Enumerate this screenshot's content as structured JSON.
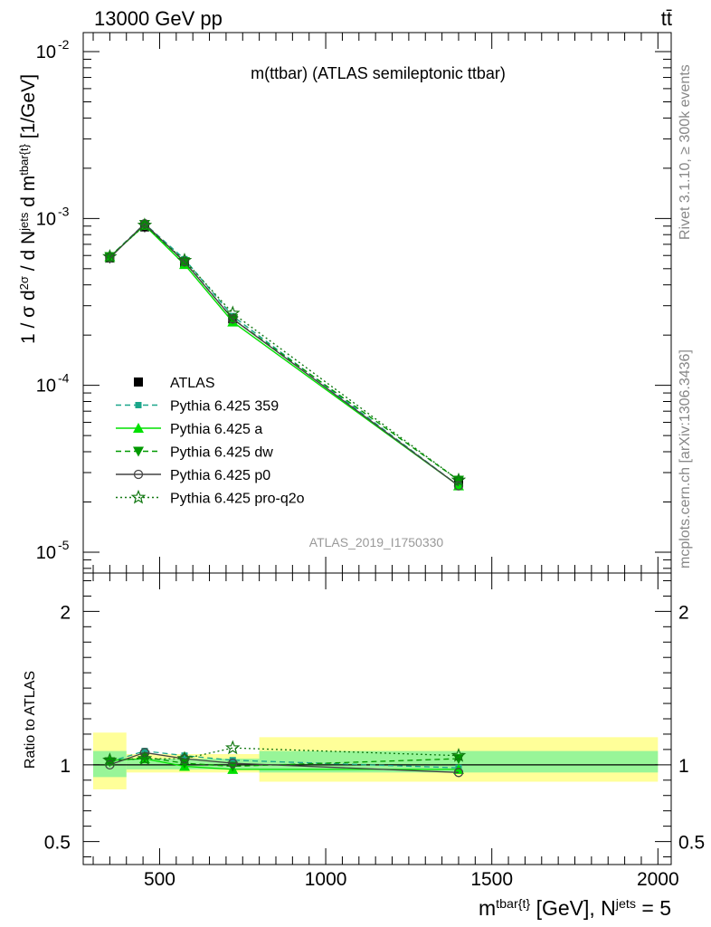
{
  "header": {
    "left": "13000 GeV pp",
    "right": "tt̄",
    "plot_title": "m(ttbar) (ATLAS semileptonic ttbar)",
    "analysis_id": "ATLAS_2019_I1750330",
    "side_rivet": "Rivet 3.1.10, ≥ 300k events",
    "side_mcplots": "mcplots.cern.ch [arXiv:1306.3436]"
  },
  "axes": {
    "main_ylabel": "1 / σ d²σ / d N^jets d m^tbar{t} [1/GeV]",
    "ratio_ylabel": "Ratio to ATLAS",
    "xlabel": "m^tbar{t} [GeV], N^jets = 5"
  },
  "chart_data": [
    {
      "type": "line",
      "panel": "main",
      "ylog": true,
      "xlim": [
        270,
        2040
      ],
      "ylim": [
        7.5e-06,
        0.013
      ],
      "x_ticks": [
        "500",
        "1000",
        "1500",
        "2000"
      ],
      "y_ticks": [
        "10^-5",
        "10^-4",
        "10^-3",
        "10^-2"
      ],
      "x": [
        350,
        455,
        575,
        720,
        1400
      ],
      "series": [
        {
          "name": "ATLAS",
          "color": "#000000",
          "values": [
            0.00058,
            0.00089,
            0.00054,
            0.00025,
            2.6e-05
          ]
        },
        {
          "name": "Pythia 6.425 359",
          "color": "#1aa68a",
          "dash": "dashed",
          "values": [
            0.00059,
            0.00093,
            0.00057,
            0.00026,
            2.5e-05
          ]
        },
        {
          "name": "Pythia 6.425 a",
          "color": "#00e000",
          "dash": "solid",
          "values": [
            0.00059,
            0.00091,
            0.00053,
            0.00024,
            2.5e-05
          ]
        },
        {
          "name": "Pythia 6.425 dw",
          "color": "#009900",
          "dash": "dashed",
          "values": [
            0.00059,
            0.00092,
            0.00055,
            0.00025,
            2.7e-05
          ]
        },
        {
          "name": "Pythia 6.425 p0",
          "color": "#444444",
          "dash": "solid",
          "values": [
            0.00058,
            0.00093,
            0.00055,
            0.00025,
            2.5e-05
          ]
        },
        {
          "name": "Pythia 6.425 pro-q2o",
          "color": "#117711",
          "dash": "dotted",
          "values": [
            0.00059,
            0.00091,
            0.00056,
            0.00027,
            2.7e-05
          ]
        }
      ]
    },
    {
      "type": "line",
      "panel": "ratio",
      "xlim": [
        270,
        2040
      ],
      "ylim": [
        0.35,
        2.25
      ],
      "y_ticks": [
        "0.5",
        "1",
        "2"
      ],
      "x": [
        350,
        455,
        575,
        720,
        1400
      ],
      "bands": [
        {
          "x0": 300,
          "x1": 400,
          "outer": [
            0.84,
            1.21
          ],
          "inner": [
            0.92,
            1.09
          ]
        },
        {
          "x0": 400,
          "x1": 800,
          "outer": [
            0.95,
            1.07
          ],
          "inner": [
            0.97,
            1.04
          ]
        },
        {
          "x0": 800,
          "x1": 2000,
          "outer": [
            0.89,
            1.18
          ],
          "inner": [
            0.95,
            1.09
          ]
        }
      ],
      "series": [
        {
          "name": "Pythia 6.425 359",
          "values": [
            1.02,
            1.09,
            1.06,
            1.03,
            0.98
          ]
        },
        {
          "name": "Pythia 6.425 a",
          "values": [
            1.03,
            1.04,
            0.99,
            0.97,
            0.97
          ]
        },
        {
          "name": "Pythia 6.425 dw",
          "values": [
            1.02,
            1.05,
            1.01,
            0.99,
            1.04
          ]
        },
        {
          "name": "Pythia 6.425 p0",
          "values": [
            1.0,
            1.08,
            1.04,
            1.01,
            0.95
          ]
        },
        {
          "name": "Pythia 6.425 pro-q2o",
          "values": [
            1.03,
            1.04,
            1.04,
            1.11,
            1.06
          ]
        }
      ]
    }
  ]
}
